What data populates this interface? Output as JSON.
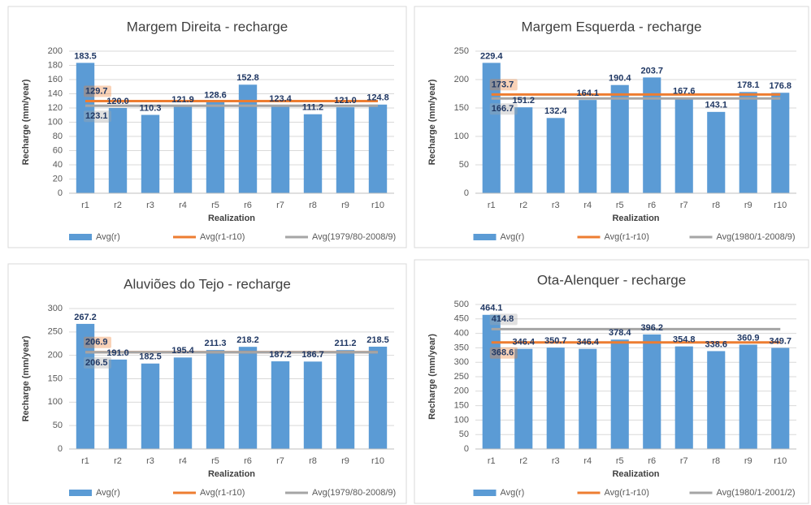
{
  "chart_data": [
    {
      "type": "bar",
      "title": "Margem Direita - recharge",
      "xlabel": "Realization",
      "ylabel": "Recharge (mm/year)",
      "categories": [
        "r1",
        "r2",
        "r3",
        "r4",
        "r5",
        "r6",
        "r7",
        "r8",
        "r9",
        "r10"
      ],
      "ylim": [
        0,
        200
      ],
      "yticks": [
        0,
        20,
        40,
        60,
        80,
        100,
        120,
        140,
        160,
        180,
        200
      ],
      "grid": true,
      "series": [
        {
          "name": "Avg(r)",
          "color": "#5b9bd5",
          "values": [
            183.5,
            120.0,
            110.3,
            121.9,
            128.6,
            152.8,
            123.4,
            111.2,
            121.0,
            124.8
          ],
          "value_labels": [
            "183.5",
            "120.0",
            "110.3",
            "121.9",
            "128.6",
            "152.8",
            "123.4",
            "111.2",
            "121.0",
            "124.8"
          ]
        },
        {
          "name": "Avg(r1-r10)",
          "color": "#ed7d31",
          "value": 129.7
        },
        {
          "name": "Avg(1979/80-2008/9)",
          "color": "#a5a5a5",
          "value": 123.1
        }
      ]
    },
    {
      "type": "bar",
      "title": "Margem Esquerda - recharge",
      "xlabel": "Realization",
      "ylabel": "Recharge (mm/year)",
      "categories": [
        "r1",
        "r2",
        "r3",
        "r4",
        "r5",
        "r6",
        "r7",
        "r8",
        "r9",
        "r10"
      ],
      "ylim": [
        0,
        250
      ],
      "yticks": [
        0,
        50,
        100,
        150,
        200,
        250
      ],
      "grid": true,
      "series": [
        {
          "name": "Avg(r)",
          "color": "#5b9bd5",
          "values": [
            229.4,
            151.2,
            132.4,
            164.1,
            190.4,
            203.7,
            167.6,
            143.1,
            178.1,
            176.8
          ],
          "value_labels": [
            "229.4",
            "151.2",
            "132.4",
            "164.1",
            "190.4",
            "203.7",
            "167.6",
            "143.1",
            "178.1",
            "176.8"
          ]
        },
        {
          "name": "Avg(r1-r10)",
          "color": "#ed7d31",
          "value": 173.7
        },
        {
          "name": "Avg(1980/1-2008/9)",
          "color": "#a5a5a5",
          "value": 166.7
        }
      ]
    },
    {
      "type": "bar",
      "title": "Aluviões do Tejo - recharge",
      "xlabel": "Realization",
      "ylabel": "Recharge (mm/year)",
      "categories": [
        "r1",
        "r2",
        "r3",
        "r4",
        "r5",
        "r6",
        "r7",
        "r8",
        "r9",
        "r10"
      ],
      "ylim": [
        0,
        300
      ],
      "yticks": [
        0,
        50,
        100,
        150,
        200,
        250,
        300
      ],
      "grid": true,
      "series": [
        {
          "name": "Avg(r)",
          "color": "#5b9bd5",
          "values": [
            267.2,
            191.0,
            182.5,
            195.4,
            211.3,
            218.2,
            187.2,
            186.7,
            211.2,
            218.5
          ],
          "value_labels": [
            "267.2",
            "191.0",
            "182.5",
            "195.4",
            "211.3",
            "218.2",
            "187.2",
            "186.7",
            "211.2",
            "218.5"
          ]
        },
        {
          "name": "Avg(r1-r10)",
          "color": "#ed7d31",
          "value": 206.9
        },
        {
          "name": "Avg(1979/80-2008/9)",
          "color": "#a5a5a5",
          "value": 206.5
        }
      ]
    },
    {
      "type": "bar",
      "title": "Ota-Alenquer - recharge",
      "xlabel": "Realization",
      "ylabel": "Recharge (mm/year)",
      "categories": [
        "r1",
        "r2",
        "r3",
        "r4",
        "r5",
        "r6",
        "r7",
        "r8",
        "r9",
        "r10"
      ],
      "ylim": [
        0,
        500
      ],
      "yticks": [
        0,
        50,
        100,
        150,
        200,
        250,
        300,
        350,
        400,
        450,
        500
      ],
      "grid": true,
      "series": [
        {
          "name": "Avg(r)",
          "color": "#5b9bd5",
          "values": [
            464.1,
            346.4,
            350.7,
            346.4,
            378.4,
            396.2,
            354.8,
            338.6,
            360.9,
            349.7
          ],
          "value_labels": [
            "464.1",
            "346.4",
            "350.7",
            "346.4",
            "378.4",
            "396.2",
            "354.8",
            "338.6",
            "360.9",
            "349.7"
          ]
        },
        {
          "name": "Avg(r1-r10)",
          "color": "#ed7d31",
          "value": 368.6
        },
        {
          "name": "Avg(1980/1-2001/2)",
          "color": "#a5a5a5",
          "value": 414.8
        }
      ]
    }
  ]
}
